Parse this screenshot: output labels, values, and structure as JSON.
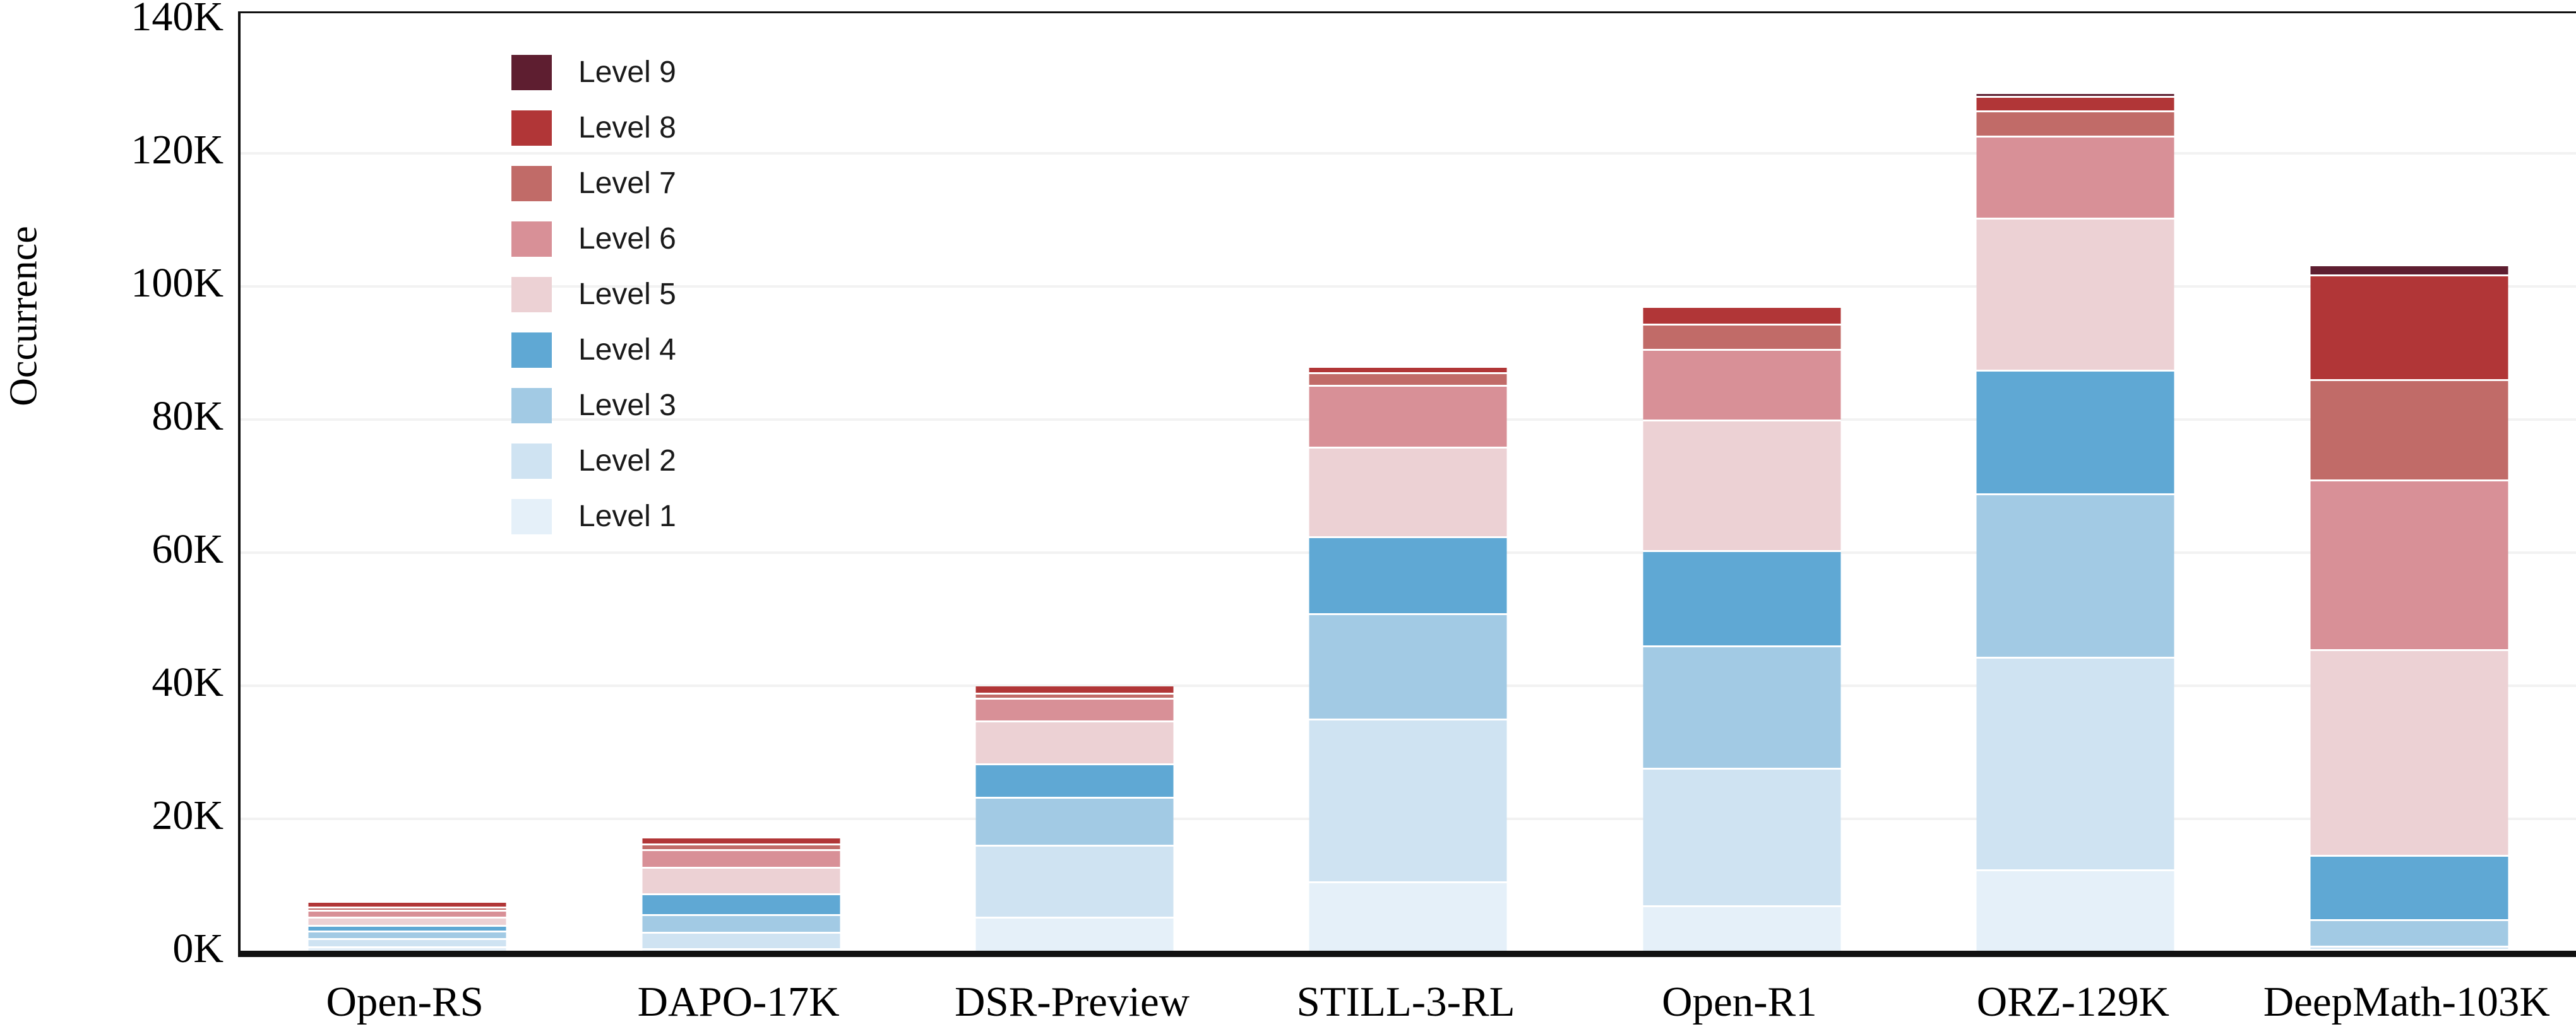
{
  "chart_data": {
    "type": "bar",
    "stacked": true,
    "title": "",
    "xlabel": "",
    "ylabel": "Occurrence",
    "ylim": [
      0,
      140000
    ],
    "y_ticks": [
      {
        "value": 0,
        "label": "0K"
      },
      {
        "value": 20,
        "label": "20K"
      },
      {
        "value": 40,
        "label": "40K"
      },
      {
        "value": 60,
        "label": "60K"
      },
      {
        "value": 80,
        "label": "80K"
      },
      {
        "value": 100,
        "label": "100K"
      },
      {
        "value": 120,
        "label": "120K"
      },
      {
        "value": 140,
        "label": "140K"
      }
    ],
    "grid": "horizontal",
    "legend_position": "upper-left-inside",
    "categories": [
      "Open-RS",
      "DAPO-17K",
      "DSR-Preview",
      "STILL-3-RL",
      "Open-R1",
      "ORZ-129K",
      "DeepMath-103K"
    ],
    "totals_K": [
      7.2,
      16.9,
      39.7,
      87.6,
      96.6,
      128.7,
      102.8
    ],
    "unit": "K occurrences",
    "series": [
      {
        "name": "Level 1",
        "color": "#e5f0f9",
        "values_K": [
          0.7,
          0.4,
          5.1,
          10.4,
          6.8,
          12.2,
          0.2
        ]
      },
      {
        "name": "Level 2",
        "color": "#cfe3f2",
        "values_K": [
          1.2,
          2.4,
          10.8,
          24.5,
          20.7,
          32.0,
          0.5
        ]
      },
      {
        "name": "Level 3",
        "color": "#a2cae4",
        "values_K": [
          1.1,
          2.7,
          7.2,
          15.8,
          18.4,
          24.5,
          4.0
        ]
      },
      {
        "name": "Level 4",
        "color": "#5fa8d4",
        "values_K": [
          0.9,
          3.1,
          5.1,
          11.6,
          14.3,
          18.6,
          9.6
        ]
      },
      {
        "name": "Level 5",
        "color": "#ecd1d4",
        "values_K": [
          1.2,
          4.0,
          6.4,
          13.4,
          19.6,
          22.8,
          30.9
        ]
      },
      {
        "name": "Level 6",
        "color": "#d89097",
        "values_K": [
          1.1,
          2.7,
          3.4,
          9.3,
          10.6,
          12.4,
          25.5
        ]
      },
      {
        "name": "Level 7",
        "color": "#c16b68",
        "values_K": [
          0.4,
          0.8,
          0.8,
          1.9,
          3.8,
          3.8,
          15.1
        ]
      },
      {
        "name": "Level 8",
        "color": "#b13637",
        "values_K": [
          0.6,
          0.8,
          0.9,
          0.7,
          2.4,
          2.1,
          15.7
        ]
      },
      {
        "name": "Level 9",
        "color": "#5e1e30",
        "values_K": [
          0.0,
          0.0,
          0.0,
          0.0,
          0.0,
          0.3,
          1.3
        ]
      }
    ],
    "colors": {
      "axis": "#111111",
      "gridline": "#f2f2f2",
      "segment_separator": "#ffffff",
      "background": "#ffffff"
    }
  }
}
